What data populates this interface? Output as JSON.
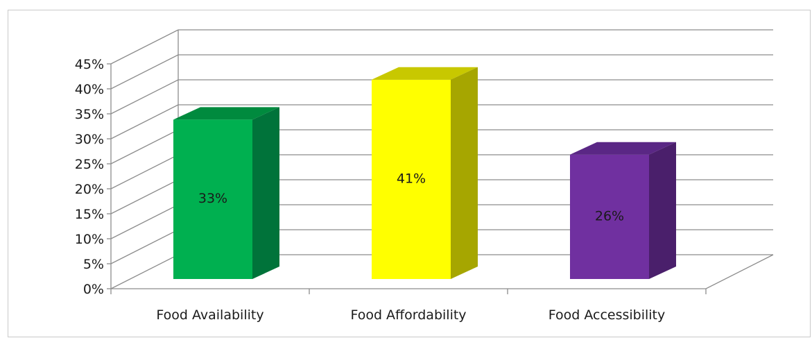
{
  "chart_data": {
    "type": "bar",
    "three_d": true,
    "categories": [
      "Food Availability",
      "Food Affordability",
      "Food Accessibility"
    ],
    "values": [
      33,
      41,
      26
    ],
    "data_labels": [
      "33%",
      "41%",
      "26%"
    ],
    "ylim": [
      0,
      45
    ],
    "y_ticks": [
      0,
      5,
      10,
      15,
      20,
      25,
      30,
      35,
      40,
      45
    ],
    "y_tick_labels": [
      "0%",
      "5%",
      "10%",
      "15%",
      "20%",
      "25%",
      "30%",
      "35%",
      "40%",
      "45%"
    ],
    "grid": true,
    "legend": "none",
    "colors": [
      {
        "front": "#00b050",
        "side": "#00733a",
        "top": "#008a3e"
      },
      {
        "front": "#ffff00",
        "side": "#a6a600",
        "top": "#c8c800"
      },
      {
        "front": "#7030a0",
        "side": "#4a1f6b",
        "top": "#5a2785"
      }
    ],
    "grid_color": "#8c8c8c"
  }
}
